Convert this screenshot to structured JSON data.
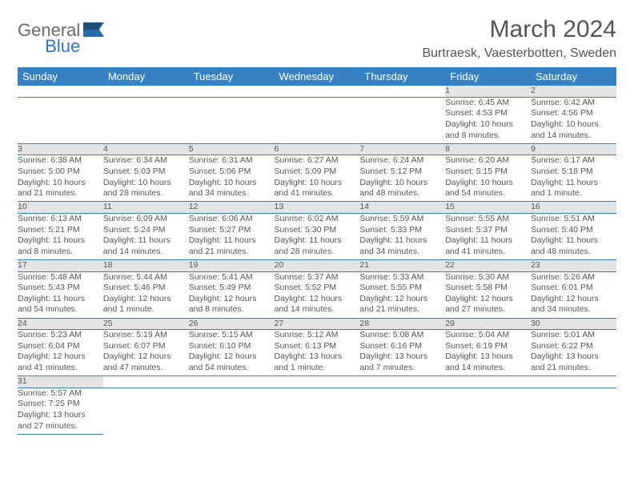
{
  "logo": {
    "word1": "General",
    "word2": "Blue"
  },
  "title": "March 2024",
  "location": "Burtraesk, Vaesterbotten, Sweden",
  "colors": {
    "header_bg": "#3781c2",
    "header_text": "#ffffff",
    "daynum_bg": "#e4e4e4",
    "text": "#555555",
    "rule": "#3781c2"
  },
  "weekdays": [
    "Sunday",
    "Monday",
    "Tuesday",
    "Wednesday",
    "Thursday",
    "Friday",
    "Saturday"
  ],
  "weeks": [
    [
      null,
      null,
      null,
      null,
      null,
      {
        "n": "1",
        "sr": "Sunrise: 6:45 AM",
        "ss": "Sunset: 4:53 PM",
        "d1": "Daylight: 10 hours",
        "d2": "and 8 minutes."
      },
      {
        "n": "2",
        "sr": "Sunrise: 6:42 AM",
        "ss": "Sunset: 4:56 PM",
        "d1": "Daylight: 10 hours",
        "d2": "and 14 minutes."
      }
    ],
    [
      {
        "n": "3",
        "sr": "Sunrise: 6:38 AM",
        "ss": "Sunset: 5:00 PM",
        "d1": "Daylight: 10 hours",
        "d2": "and 21 minutes."
      },
      {
        "n": "4",
        "sr": "Sunrise: 6:34 AM",
        "ss": "Sunset: 5:03 PM",
        "d1": "Daylight: 10 hours",
        "d2": "and 28 minutes."
      },
      {
        "n": "5",
        "sr": "Sunrise: 6:31 AM",
        "ss": "Sunset: 5:06 PM",
        "d1": "Daylight: 10 hours",
        "d2": "and 34 minutes."
      },
      {
        "n": "6",
        "sr": "Sunrise: 6:27 AM",
        "ss": "Sunset: 5:09 PM",
        "d1": "Daylight: 10 hours",
        "d2": "and 41 minutes."
      },
      {
        "n": "7",
        "sr": "Sunrise: 6:24 AM",
        "ss": "Sunset: 5:12 PM",
        "d1": "Daylight: 10 hours",
        "d2": "and 48 minutes."
      },
      {
        "n": "8",
        "sr": "Sunrise: 6:20 AM",
        "ss": "Sunset: 5:15 PM",
        "d1": "Daylight: 10 hours",
        "d2": "and 54 minutes."
      },
      {
        "n": "9",
        "sr": "Sunrise: 6:17 AM",
        "ss": "Sunset: 5:18 PM",
        "d1": "Daylight: 11 hours",
        "d2": "and 1 minute."
      }
    ],
    [
      {
        "n": "10",
        "sr": "Sunrise: 6:13 AM",
        "ss": "Sunset: 5:21 PM",
        "d1": "Daylight: 11 hours",
        "d2": "and 8 minutes."
      },
      {
        "n": "11",
        "sr": "Sunrise: 6:09 AM",
        "ss": "Sunset: 5:24 PM",
        "d1": "Daylight: 11 hours",
        "d2": "and 14 minutes."
      },
      {
        "n": "12",
        "sr": "Sunrise: 6:06 AM",
        "ss": "Sunset: 5:27 PM",
        "d1": "Daylight: 11 hours",
        "d2": "and 21 minutes."
      },
      {
        "n": "13",
        "sr": "Sunrise: 6:02 AM",
        "ss": "Sunset: 5:30 PM",
        "d1": "Daylight: 11 hours",
        "d2": "and 28 minutes."
      },
      {
        "n": "14",
        "sr": "Sunrise: 5:59 AM",
        "ss": "Sunset: 5:33 PM",
        "d1": "Daylight: 11 hours",
        "d2": "and 34 minutes."
      },
      {
        "n": "15",
        "sr": "Sunrise: 5:55 AM",
        "ss": "Sunset: 5:37 PM",
        "d1": "Daylight: 11 hours",
        "d2": "and 41 minutes."
      },
      {
        "n": "16",
        "sr": "Sunrise: 5:51 AM",
        "ss": "Sunset: 5:40 PM",
        "d1": "Daylight: 11 hours",
        "d2": "and 48 minutes."
      }
    ],
    [
      {
        "n": "17",
        "sr": "Sunrise: 5:48 AM",
        "ss": "Sunset: 5:43 PM",
        "d1": "Daylight: 11 hours",
        "d2": "and 54 minutes."
      },
      {
        "n": "18",
        "sr": "Sunrise: 5:44 AM",
        "ss": "Sunset: 5:46 PM",
        "d1": "Daylight: 12 hours",
        "d2": "and 1 minute."
      },
      {
        "n": "19",
        "sr": "Sunrise: 5:41 AM",
        "ss": "Sunset: 5:49 PM",
        "d1": "Daylight: 12 hours",
        "d2": "and 8 minutes."
      },
      {
        "n": "20",
        "sr": "Sunrise: 5:37 AM",
        "ss": "Sunset: 5:52 PM",
        "d1": "Daylight: 12 hours",
        "d2": "and 14 minutes."
      },
      {
        "n": "21",
        "sr": "Sunrise: 5:33 AM",
        "ss": "Sunset: 5:55 PM",
        "d1": "Daylight: 12 hours",
        "d2": "and 21 minutes."
      },
      {
        "n": "22",
        "sr": "Sunrise: 5:30 AM",
        "ss": "Sunset: 5:58 PM",
        "d1": "Daylight: 12 hours",
        "d2": "and 27 minutes."
      },
      {
        "n": "23",
        "sr": "Sunrise: 5:26 AM",
        "ss": "Sunset: 6:01 PM",
        "d1": "Daylight: 12 hours",
        "d2": "and 34 minutes."
      }
    ],
    [
      {
        "n": "24",
        "sr": "Sunrise: 5:23 AM",
        "ss": "Sunset: 6:04 PM",
        "d1": "Daylight: 12 hours",
        "d2": "and 41 minutes."
      },
      {
        "n": "25",
        "sr": "Sunrise: 5:19 AM",
        "ss": "Sunset: 6:07 PM",
        "d1": "Daylight: 12 hours",
        "d2": "and 47 minutes."
      },
      {
        "n": "26",
        "sr": "Sunrise: 5:15 AM",
        "ss": "Sunset: 6:10 PM",
        "d1": "Daylight: 12 hours",
        "d2": "and 54 minutes."
      },
      {
        "n": "27",
        "sr": "Sunrise: 5:12 AM",
        "ss": "Sunset: 6:13 PM",
        "d1": "Daylight: 13 hours",
        "d2": "and 1 minute."
      },
      {
        "n": "28",
        "sr": "Sunrise: 5:08 AM",
        "ss": "Sunset: 6:16 PM",
        "d1": "Daylight: 13 hours",
        "d2": "and 7 minutes."
      },
      {
        "n": "29",
        "sr": "Sunrise: 5:04 AM",
        "ss": "Sunset: 6:19 PM",
        "d1": "Daylight: 13 hours",
        "d2": "and 14 minutes."
      },
      {
        "n": "30",
        "sr": "Sunrise: 5:01 AM",
        "ss": "Sunset: 6:22 PM",
        "d1": "Daylight: 13 hours",
        "d2": "and 21 minutes."
      }
    ],
    [
      {
        "n": "31",
        "sr": "Sunrise: 5:57 AM",
        "ss": "Sunset: 7:25 PM",
        "d1": "Daylight: 13 hours",
        "d2": "and 27 minutes."
      },
      null,
      null,
      null,
      null,
      null,
      null
    ]
  ]
}
